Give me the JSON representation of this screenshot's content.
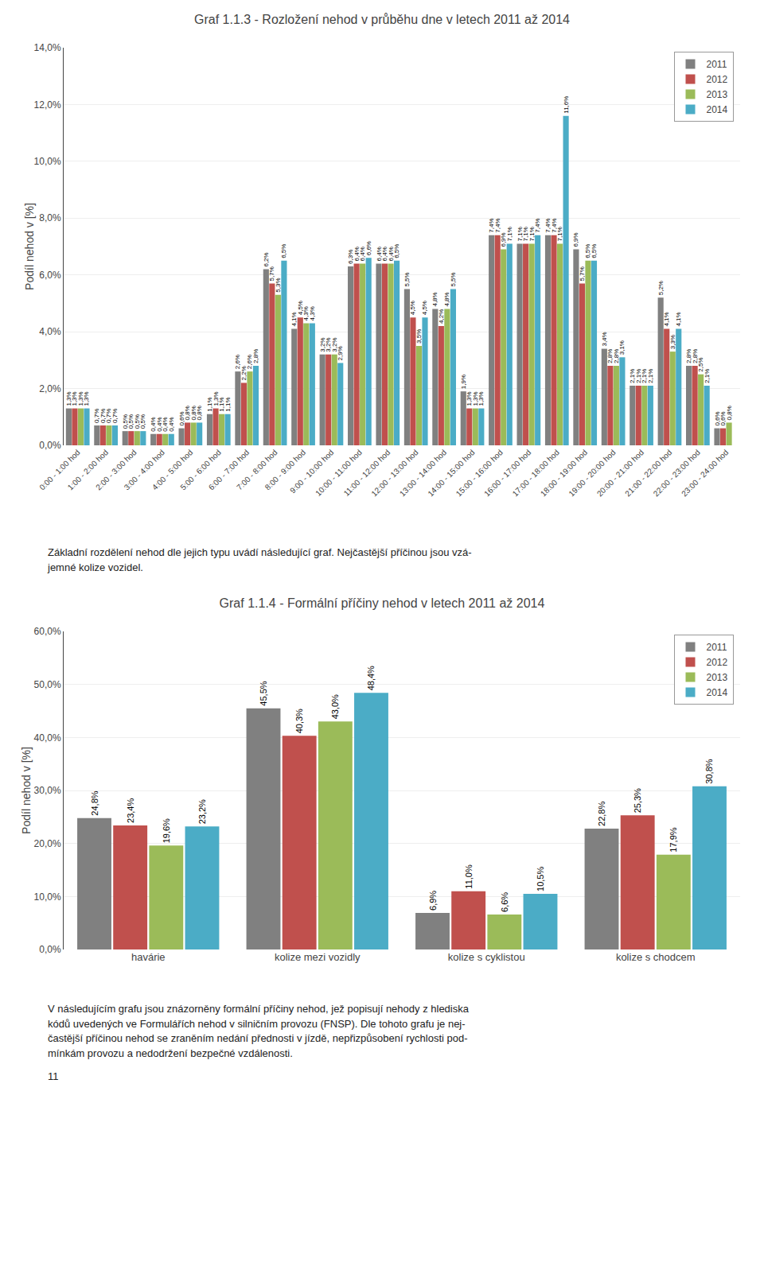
{
  "chart_data": [
    {
      "type": "bar",
      "title": "Graf 1.1.3 - Rozložení nehod v průběhu dne v letech 2011 až 2014",
      "y_label": "Podíl nehod v [%]",
      "categories": [
        "0:00 - 1:00 hod",
        "1:00 - 2:00 hod",
        "2:00 - 3:00 hod",
        "3:00 - 4:00 hod",
        "4:00 - 5:00 hod",
        "5:00 - 6:00 hod",
        "6:00 - 7:00 hod",
        "7:00 - 8:00 hod",
        "8:00 - 9:00 hod",
        "9:00 - 10:00 hod",
        "10:00 - 11:00 hod",
        "11:00 - 12:00 hod",
        "12:00 - 13:00 hod",
        "13:00 - 14:00 hod",
        "14:00 - 15:00 hod",
        "15:00 - 16:00 hod",
        "16:00 - 17:00 hod",
        "17:00 - 18:00 hod",
        "18:00 - 19:00 hod",
        "19:00 - 20:00 hod",
        "20:00 - 21:00 hod",
        "21:00 - 22:00 hod",
        "22:00 - 23:00 hod",
        "23:00 - 24:00 hod"
      ],
      "series": [
        {
          "name": "2011",
          "color": "#808080",
          "values": [
            1.3,
            0.7,
            0.5,
            0.4,
            0.6,
            1.1,
            2.6,
            6.2,
            4.1,
            3.2,
            6.3,
            6.4,
            5.5,
            4.8,
            1.9,
            7.4,
            7.1,
            7.4,
            6.9,
            3.4,
            2.1,
            5.2,
            2.8,
            0.6
          ],
          "value_labels": [
            "1,3%",
            "0,7%",
            "0,5%",
            "0,4%",
            "0,6%",
            "1,1%",
            "2,6%",
            "6,2%",
            "4,1%",
            "3,2%",
            "6,3%",
            "6,4%",
            "5,5%",
            "4,8%",
            "1,9%",
            "7,4%",
            "7,1%",
            "7,4%",
            "6,9%",
            "3,4%",
            "2,1%",
            "5,2%",
            "2,8%",
            "0,6%"
          ]
        },
        {
          "name": "2012",
          "color": "#C0504D",
          "values": [
            1.3,
            0.7,
            0.5,
            0.4,
            0.8,
            1.3,
            2.2,
            5.7,
            4.5,
            3.2,
            6.4,
            6.4,
            4.5,
            4.2,
            1.3,
            7.4,
            7.1,
            7.4,
            5.7,
            2.8,
            2.1,
            4.1,
            2.8,
            0.6
          ],
          "value_labels": [
            "1,3%",
            "0,7%",
            "0,5%",
            "0,4%",
            "0,8%",
            "1,3%",
            "2,2%",
            "5,7%",
            "4,5%",
            "3,2%",
            "6,4%",
            "6,4%",
            "4,5%",
            "4,2%",
            "1,3%",
            "7,4%",
            "7,1%",
            "7,4%",
            "5,7%",
            "2,8%",
            "2,1%",
            "4,1%",
            "2,8%",
            "0,6%"
          ]
        },
        {
          "name": "2013",
          "color": "#9BBB59",
          "values": [
            1.3,
            0.7,
            0.5,
            0.4,
            0.8,
            1.1,
            2.6,
            5.3,
            4.3,
            3.2,
            6.4,
            6.4,
            3.5,
            4.8,
            1.3,
            6.9,
            7.1,
            7.1,
            6.5,
            2.8,
            2.1,
            3.3,
            2.5,
            0.8
          ],
          "value_labels": [
            "1,3%",
            "0,7%",
            "0,5%",
            "0,4%",
            "0,8%",
            "1,1%",
            "2,6%",
            "5,3%",
            "4,3%",
            "3,2%",
            "6,4%",
            "6,4%",
            "3,5%",
            "4,8%",
            "1,3%",
            "6,9%",
            "7,1%",
            "7,1%",
            "6,5%",
            "2,8%",
            "2,1%",
            "3,3%",
            "2,5%",
            "0,8%"
          ]
        },
        {
          "name": "2014",
          "color": "#4BACC6",
          "values": [
            1.3,
            0.7,
            0.5,
            0.4,
            0.8,
            1.1,
            2.8,
            6.5,
            4.3,
            2.9,
            6.6,
            6.5,
            4.5,
            5.5,
            1.3,
            7.1,
            7.4,
            11.6,
            6.5,
            3.1,
            2.1,
            4.1,
            2.1,
            0.0
          ],
          "value_labels": [
            "1,3%",
            "0,7%",
            "0,5%",
            "0,4%",
            "0,8%",
            "1,1%",
            "2,8%",
            "6,5%",
            "4,3%",
            "2,9%",
            "6,6%",
            "6,5%",
            "4,5%",
            "5,5%",
            "1,3%",
            "7,1%",
            "7,4%",
            "11,6%",
            "6,5%",
            "3,1%",
            "2,1%",
            "4,1%",
            "2,1%",
            null
          ]
        }
      ],
      "ylim": [
        0,
        14.0
      ],
      "yticks": [
        {
          "value": 0,
          "label": "0,0%"
        },
        {
          "value": 2.0,
          "label": "2,0%"
        },
        {
          "value": 4.0,
          "label": "4,0%"
        },
        {
          "value": 6.0,
          "label": "6,0%"
        },
        {
          "value": 8.0,
          "label": "8,0%"
        },
        {
          "value": 10.0,
          "label": "10,0%"
        },
        {
          "value": 12.0,
          "label": "12,0%"
        },
        {
          "value": 14.0,
          "label": "14,0%"
        }
      ],
      "grid": true,
      "legend": "upper right",
      "data_labels": true,
      "annotations": [
        "Základní rozdělení nehod dle jejich typu uvádí následující graf. Nejčastější příčinou jsou vzá-\njemné kolize vozidel."
      ]
    },
    {
      "type": "bar",
      "title": "Graf 1.1.4 - Formální příčiny nehod v letech 2011 až 2014",
      "y_label": "Podíl nehod v [%]",
      "categories": [
        "havárie",
        "kolize mezi vozidly",
        "kolize s cyklistou",
        "kolize s chodcem"
      ],
      "series": [
        {
          "name": "2011",
          "color": "#808080",
          "values": [
            24.8,
            45.5,
            6.9,
            22.8
          ],
          "value_labels": [
            "24,8%",
            "45,5%",
            "6,9%",
            "22,8%"
          ]
        },
        {
          "name": "2012",
          "color": "#C0504D",
          "values": [
            23.4,
            40.3,
            11.0,
            25.3
          ],
          "value_labels": [
            "23,4%",
            "40,3%",
            "11,0%",
            "25,3%"
          ]
        },
        {
          "name": "2013",
          "color": "#9BBB59",
          "values": [
            19.6,
            43.0,
            6.6,
            17.9
          ],
          "value_labels": [
            "19,6%",
            "43,0%",
            "6,6%",
            "17,9%"
          ]
        },
        {
          "name": "2014",
          "color": "#4BACC6",
          "values": [
            23.2,
            48.4,
            10.5,
            30.8
          ],
          "value_labels": [
            "23,2%",
            "48,4%",
            "10,5%",
            "30,8%"
          ]
        }
      ],
      "ylim": [
        0,
        60.0
      ],
      "yticks": [
        {
          "value": 0,
          "label": "0,0%"
        },
        {
          "value": 10.0,
          "label": "10,0%"
        },
        {
          "value": 20.0,
          "label": "20,0%"
        },
        {
          "value": 30.0,
          "label": "30,0%"
        },
        {
          "value": 40.0,
          "label": "40,0%"
        },
        {
          "value": 50.0,
          "label": "50,0%"
        },
        {
          "value": 60.0,
          "label": "60,0%"
        }
      ],
      "grid": true,
      "legend": "upper right",
      "data_labels": true,
      "annotations": [
        "V následujícím grafu jsou znázorněny formální příčiny nehod, jež popisují nehody z hlediska\nkódů uvedených ve Formulářích nehod v silničním provozu (FNSP). Dle tohoto grafu je nej-\nčastější příčinou nehod se zraněním nedání přednosti v jízdě, nepřizpůsobení rychlosti pod-\nmínkám provozu a nedodržení bezpečné vzdálenosti.",
        "11"
      ]
    }
  ]
}
